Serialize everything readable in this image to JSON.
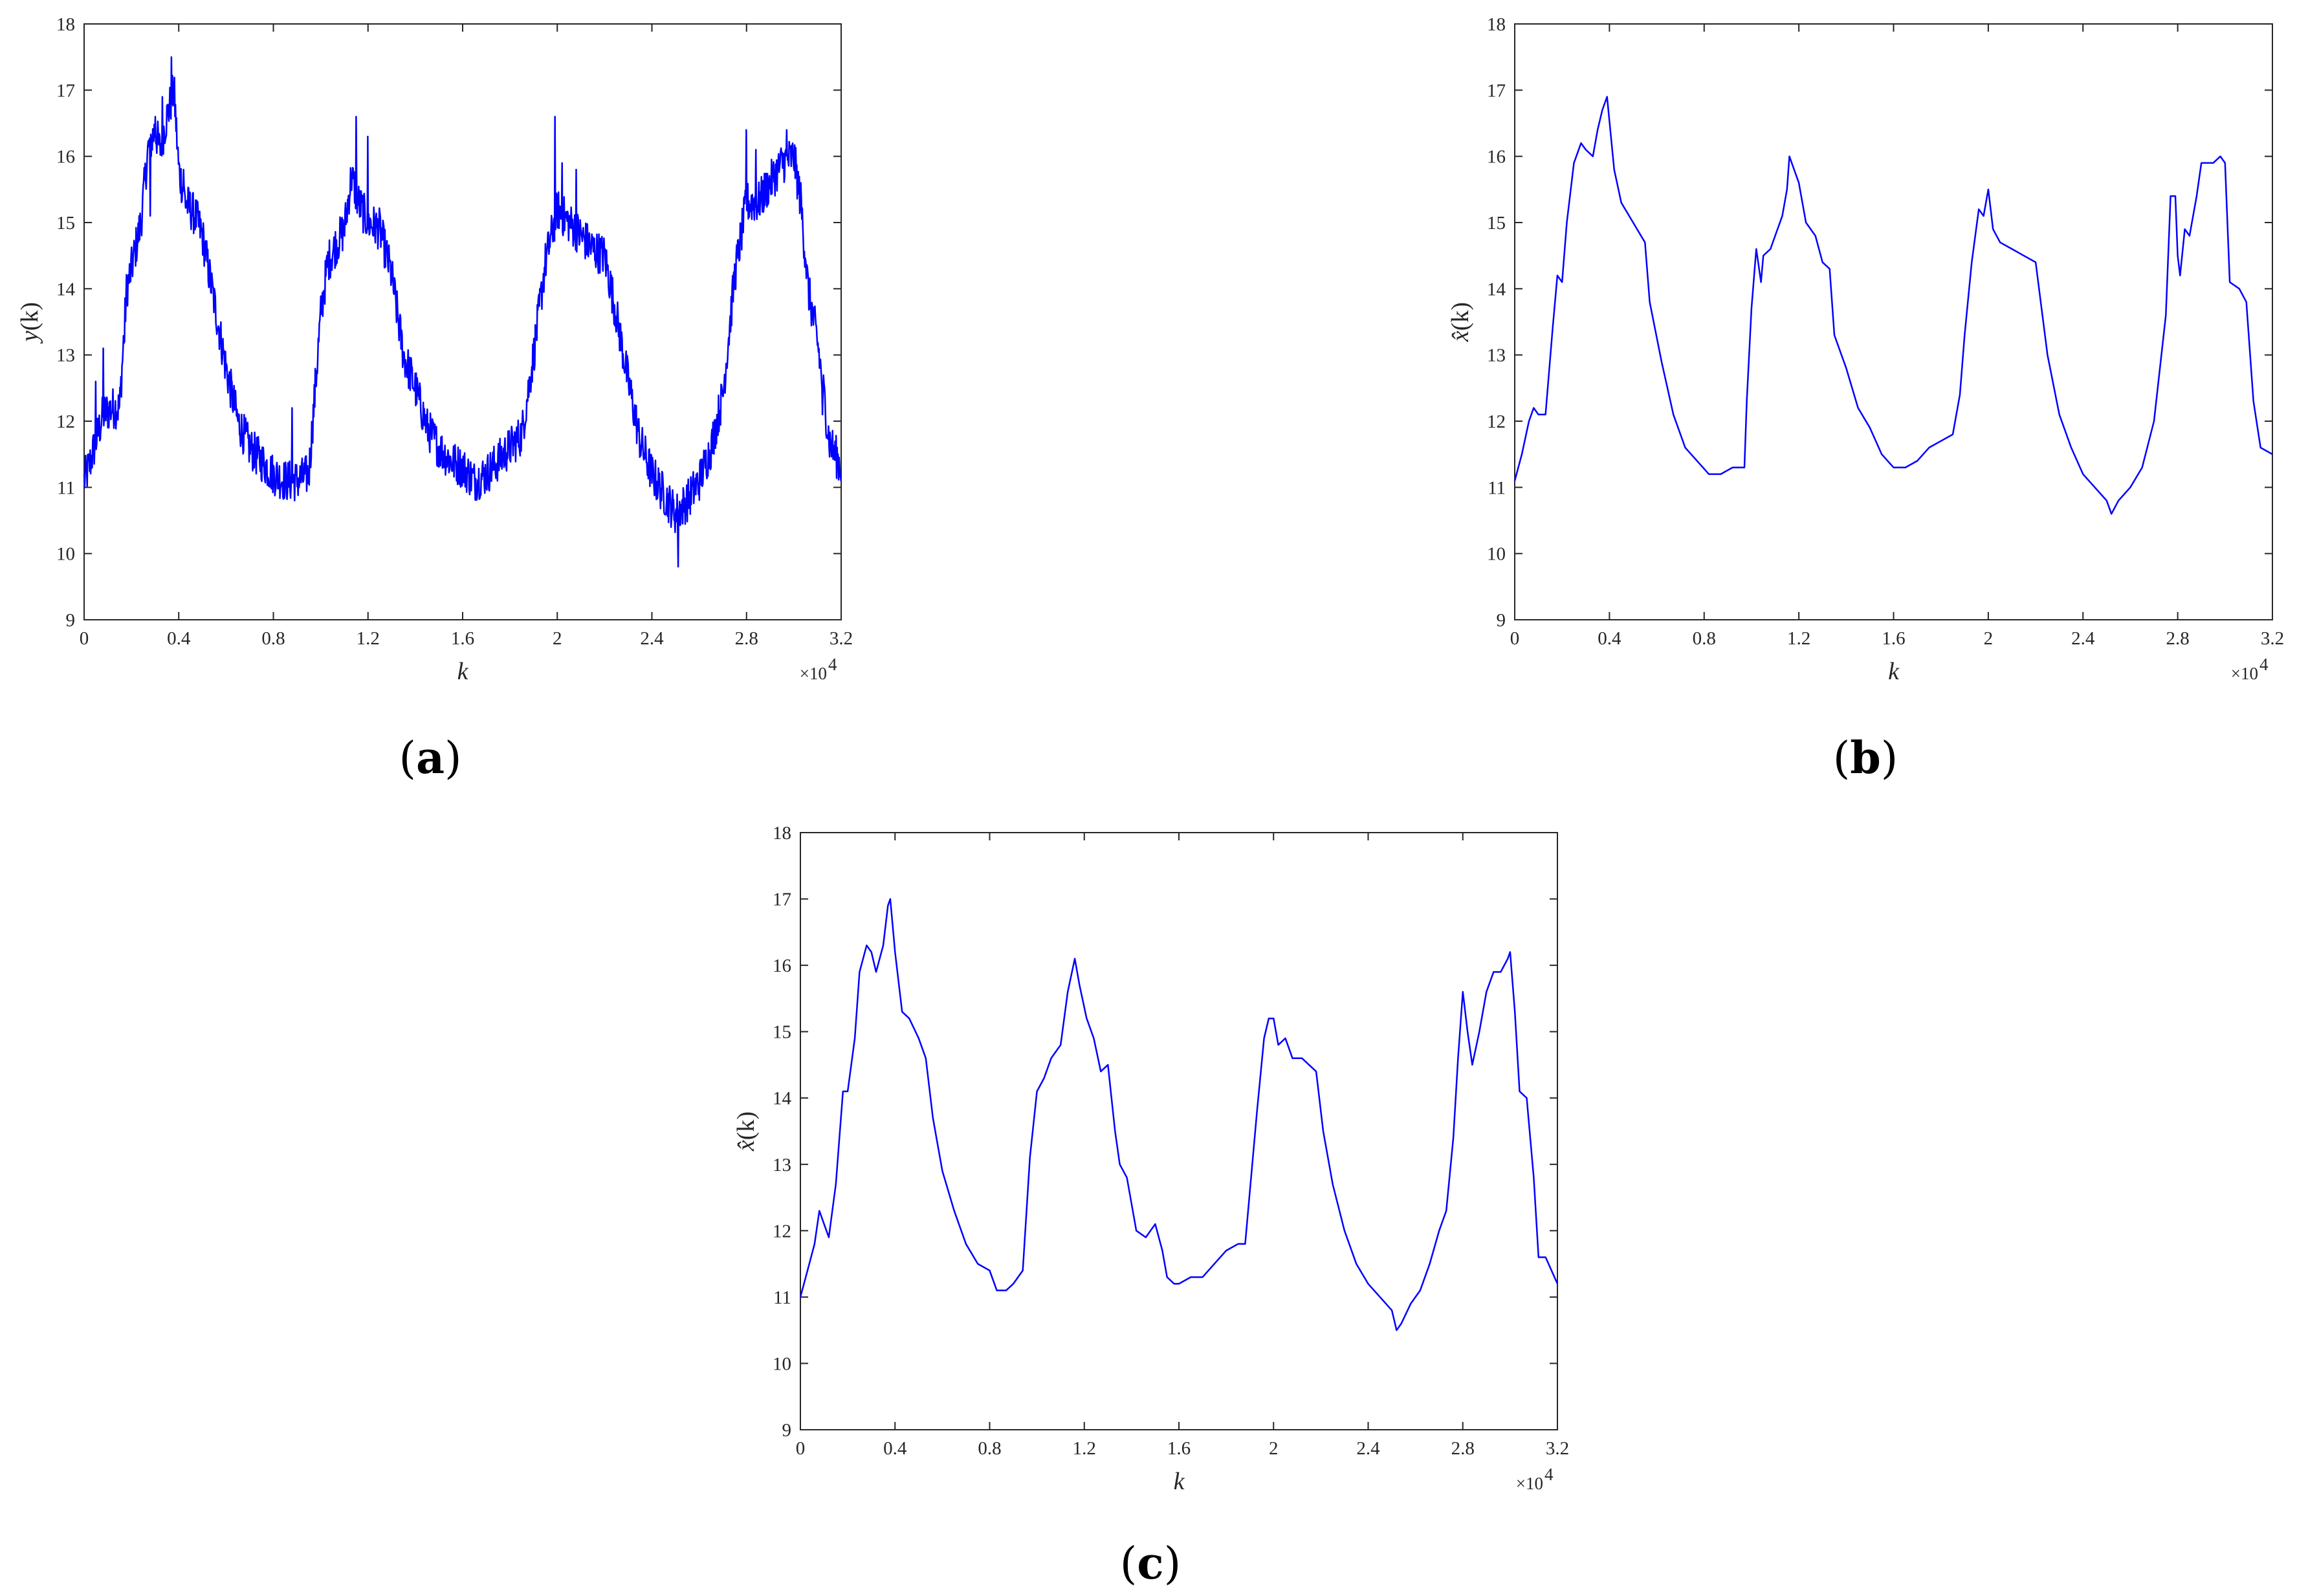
{
  "chart_data": [
    {
      "id": "a",
      "type": "line",
      "caption": {
        "letter": "a",
        "open": "(",
        "close": ")"
      },
      "xlabel": "k",
      "ylabel_main": "y",
      "ylabel_arg": "(k)",
      "x_scale_label": "×10",
      "x_scale_exp": "4",
      "xlim": [
        0,
        3.2
      ],
      "ylim": [
        9,
        18
      ],
      "xticks": [
        0,
        0.4,
        0.8,
        1.2,
        1.6,
        2,
        2.4,
        2.8,
        3.2
      ],
      "xtick_labels": [
        "0",
        "0.4",
        "0.8",
        "1.2",
        "1.6",
        "2",
        "2.4",
        "2.8",
        "3.2"
      ],
      "yticks": [
        9,
        10,
        11,
        12,
        13,
        14,
        15,
        16,
        17,
        18
      ],
      "ytick_labels": [
        "9",
        "10",
        "11",
        "12",
        "13",
        "14",
        "15",
        "16",
        "17",
        "18"
      ],
      "grid": false,
      "color": "#0000ff",
      "noise": 0.32,
      "spikes": [
        [
          0.05,
          12.6
        ],
        [
          0.08,
          13.1
        ],
        [
          0.17,
          13.2
        ],
        [
          0.28,
          15.1
        ],
        [
          0.3,
          16.6
        ],
        [
          0.33,
          16.9
        ],
        [
          0.37,
          17.5
        ],
        [
          0.42,
          15.8
        ],
        [
          0.88,
          12.2
        ],
        [
          1.15,
          16.6
        ],
        [
          1.2,
          16.3
        ],
        [
          1.99,
          16.6
        ],
        [
          2.02,
          15.9
        ],
        [
          2.08,
          15.8
        ],
        [
          2.51,
          9.8
        ],
        [
          2.8,
          16.4
        ],
        [
          2.84,
          16.1
        ],
        [
          2.97,
          16.4
        ],
        [
          3.05,
          14.4
        ],
        [
          3.12,
          12.1
        ]
      ],
      "x": [
        0,
        0.02,
        0.05,
        0.08,
        0.12,
        0.15,
        0.18,
        0.2,
        0.24,
        0.27,
        0.3,
        0.32,
        0.35,
        0.38,
        0.4,
        0.43,
        0.47,
        0.5,
        0.55,
        0.6,
        0.65,
        0.7,
        0.75,
        0.8,
        0.85,
        0.9,
        0.95,
        1.0,
        1.03,
        1.07,
        1.1,
        1.13,
        1.16,
        1.2,
        1.25,
        1.3,
        1.35,
        1.4,
        1.45,
        1.5,
        1.55,
        1.6,
        1.65,
        1.7,
        1.75,
        1.8,
        1.85,
        1.9,
        1.95,
        2.0,
        2.05,
        2.1,
        2.15,
        2.2,
        2.25,
        2.3,
        2.35,
        2.4,
        2.45,
        2.5,
        2.55,
        2.6,
        2.65,
        2.7,
        2.75,
        2.8,
        2.85,
        2.9,
        2.95,
        3.0,
        3.03,
        3.06,
        3.1,
        3.15,
        3.2
      ],
      "y": [
        11.1,
        11.3,
        11.7,
        12.1,
        12.2,
        12.2,
        14.0,
        14.3,
        15.0,
        16.1,
        16.4,
        16.1,
        16.6,
        17.0,
        15.8,
        15.3,
        15.1,
        14.8,
        13.8,
        12.8,
        12.0,
        11.6,
        11.4,
        11.2,
        11.1,
        11.1,
        11.2,
        13.6,
        14.4,
        14.7,
        14.9,
        15.7,
        15.3,
        15.0,
        14.9,
        14.2,
        13.0,
        12.5,
        11.9,
        11.6,
        11.4,
        11.3,
        11.1,
        11.2,
        11.4,
        11.6,
        11.8,
        13.0,
        14.4,
        15.2,
        15.0,
        14.8,
        14.6,
        14.5,
        13.6,
        12.6,
        11.7,
        11.2,
        10.9,
        10.6,
        10.8,
        11.1,
        11.6,
        12.4,
        14.2,
        15.3,
        15.3,
        15.6,
        15.9,
        16.0,
        15.3,
        14.0,
        13.2,
        11.7,
        11.3
      ]
    },
    {
      "id": "b",
      "type": "line",
      "caption": {
        "letter": "b",
        "open": "(",
        "close": ")"
      },
      "xlabel": "k",
      "ylabel_main": "x̂",
      "ylabel_arg": "(k)",
      "x_scale_label": "×10",
      "x_scale_exp": "4",
      "xlim": [
        0,
        3.2
      ],
      "ylim": [
        9,
        18
      ],
      "xticks": [
        0,
        0.4,
        0.8,
        1.2,
        1.6,
        2,
        2.4,
        2.8,
        3.2
      ],
      "xtick_labels": [
        "0",
        "0.4",
        "0.8",
        "1.2",
        "1.6",
        "2",
        "2.4",
        "2.8",
        "3.2"
      ],
      "yticks": [
        9,
        10,
        11,
        12,
        13,
        14,
        15,
        16,
        17,
        18
      ],
      "ytick_labels": [
        "9",
        "10",
        "11",
        "12",
        "13",
        "14",
        "15",
        "16",
        "17",
        "18"
      ],
      "grid": false,
      "color": "#0000ff",
      "noise": 0,
      "spikes": [],
      "x": [
        0,
        0.03,
        0.06,
        0.08,
        0.1,
        0.13,
        0.16,
        0.18,
        0.2,
        0.22,
        0.25,
        0.28,
        0.3,
        0.33,
        0.35,
        0.37,
        0.39,
        0.42,
        0.45,
        0.5,
        0.55,
        0.57,
        0.62,
        0.67,
        0.72,
        0.77,
        0.82,
        0.87,
        0.92,
        0.97,
        0.98,
        1.0,
        1.02,
        1.04,
        1.05,
        1.08,
        1.1,
        1.13,
        1.15,
        1.16,
        1.2,
        1.23,
        1.27,
        1.3,
        1.33,
        1.35,
        1.4,
        1.45,
        1.5,
        1.55,
        1.6,
        1.65,
        1.7,
        1.75,
        1.8,
        1.85,
        1.88,
        1.9,
        1.93,
        1.96,
        1.98,
        2.0,
        2.02,
        2.05,
        2.1,
        2.15,
        2.2,
        2.25,
        2.3,
        2.35,
        2.4,
        2.45,
        2.5,
        2.52,
        2.55,
        2.6,
        2.65,
        2.7,
        2.75,
        2.77,
        2.79,
        2.8,
        2.81,
        2.83,
        2.85,
        2.88,
        2.9,
        2.95,
        2.98,
        3.0,
        3.02,
        3.06,
        3.09,
        3.12,
        3.15,
        3.2
      ],
      "y": [
        11.1,
        11.5,
        12.0,
        12.2,
        12.1,
        12.1,
        13.4,
        14.2,
        14.1,
        15.0,
        15.9,
        16.2,
        16.1,
        16.0,
        16.4,
        16.7,
        16.9,
        15.8,
        15.3,
        15.0,
        14.7,
        13.8,
        12.9,
        12.1,
        11.6,
        11.4,
        11.2,
        11.2,
        11.3,
        11.3,
        12.3,
        13.7,
        14.6,
        14.1,
        14.5,
        14.6,
        14.8,
        15.1,
        15.5,
        16.0,
        15.6,
        15.0,
        14.8,
        14.4,
        14.3,
        13.3,
        12.8,
        12.2,
        11.9,
        11.5,
        11.3,
        11.3,
        11.4,
        11.6,
        11.7,
        11.8,
        12.4,
        13.3,
        14.4,
        15.2,
        15.1,
        15.5,
        14.9,
        14.7,
        14.6,
        14.5,
        14.4,
        13.0,
        12.1,
        11.6,
        11.2,
        11.0,
        10.8,
        10.6,
        10.8,
        11.0,
        11.3,
        12.0,
        13.6,
        15.4,
        15.4,
        14.5,
        14.2,
        14.9,
        14.8,
        15.4,
        15.9,
        15.9,
        16.0,
        15.9,
        14.1,
        14.0,
        13.8,
        12.3,
        11.6,
        11.5
      ]
    },
    {
      "id": "c",
      "type": "line",
      "caption": {
        "letter": "c",
        "open": "(",
        "close": ")"
      },
      "xlabel": "k",
      "ylabel_main": "x̂",
      "ylabel_arg": "(k)",
      "x_scale_label": "×10",
      "x_scale_exp": "4",
      "xlim": [
        0,
        3.2
      ],
      "ylim": [
        9,
        18
      ],
      "xticks": [
        0,
        0.4,
        0.8,
        1.2,
        1.6,
        2,
        2.4,
        2.8,
        3.2
      ],
      "xtick_labels": [
        "0",
        "0.4",
        "0.8",
        "1.2",
        "1.6",
        "2",
        "2.4",
        "2.8",
        "3.2"
      ],
      "yticks": [
        9,
        10,
        11,
        12,
        13,
        14,
        15,
        16,
        17,
        18
      ],
      "ytick_labels": [
        "9",
        "10",
        "11",
        "12",
        "13",
        "14",
        "15",
        "16",
        "17",
        "18"
      ],
      "grid": false,
      "color": "#0000ff",
      "noise": 0,
      "spikes": [],
      "x": [
        0,
        0.03,
        0.06,
        0.08,
        0.1,
        0.12,
        0.15,
        0.18,
        0.2,
        0.23,
        0.25,
        0.28,
        0.3,
        0.32,
        0.35,
        0.37,
        0.38,
        0.4,
        0.43,
        0.46,
        0.5,
        0.53,
        0.56,
        0.6,
        0.65,
        0.7,
        0.75,
        0.8,
        0.83,
        0.87,
        0.9,
        0.94,
        0.97,
        1.0,
        1.03,
        1.06,
        1.08,
        1.1,
        1.13,
        1.16,
        1.18,
        1.21,
        1.24,
        1.27,
        1.3,
        1.33,
        1.35,
        1.38,
        1.42,
        1.46,
        1.5,
        1.53,
        1.55,
        1.58,
        1.6,
        1.65,
        1.7,
        1.75,
        1.8,
        1.85,
        1.88,
        1.9,
        1.93,
        1.96,
        1.98,
        2.0,
        2.02,
        2.05,
        2.08,
        2.12,
        2.15,
        2.18,
        2.21,
        2.25,
        2.3,
        2.35,
        2.4,
        2.45,
        2.5,
        2.52,
        2.54,
        2.58,
        2.62,
        2.66,
        2.7,
        2.73,
        2.76,
        2.78,
        2.8,
        2.82,
        2.84,
        2.87,
        2.9,
        2.93,
        2.96,
        2.99,
        3.0,
        3.02,
        3.04,
        3.07,
        3.1,
        3.12,
        3.15,
        3.2
      ],
      "y": [
        11.0,
        11.4,
        11.8,
        12.3,
        12.1,
        11.9,
        12.7,
        14.1,
        14.1,
        14.9,
        15.9,
        16.3,
        16.2,
        15.9,
        16.3,
        16.9,
        17.0,
        16.2,
        15.3,
        15.2,
        14.9,
        14.6,
        13.7,
        12.9,
        12.3,
        11.8,
        11.5,
        11.4,
        11.1,
        11.1,
        11.2,
        11.4,
        13.1,
        14.1,
        14.3,
        14.6,
        14.7,
        14.8,
        15.6,
        16.1,
        15.7,
        15.2,
        14.9,
        14.4,
        14.5,
        13.5,
        13.0,
        12.8,
        12.0,
        11.9,
        12.1,
        11.7,
        11.3,
        11.2,
        11.2,
        11.3,
        11.3,
        11.5,
        11.7,
        11.8,
        11.8,
        12.6,
        13.8,
        14.9,
        15.2,
        15.2,
        14.8,
        14.9,
        14.6,
        14.6,
        14.5,
        14.4,
        13.5,
        12.7,
        12.0,
        11.5,
        11.2,
        11.0,
        10.8,
        10.5,
        10.6,
        10.9,
        11.1,
        11.5,
        12.0,
        12.3,
        13.4,
        14.6,
        15.6,
        15.0,
        14.5,
        15.0,
        15.6,
        15.9,
        15.9,
        16.1,
        16.2,
        15.3,
        14.1,
        14.0,
        12.8,
        11.6,
        11.6,
        11.2
      ]
    }
  ]
}
